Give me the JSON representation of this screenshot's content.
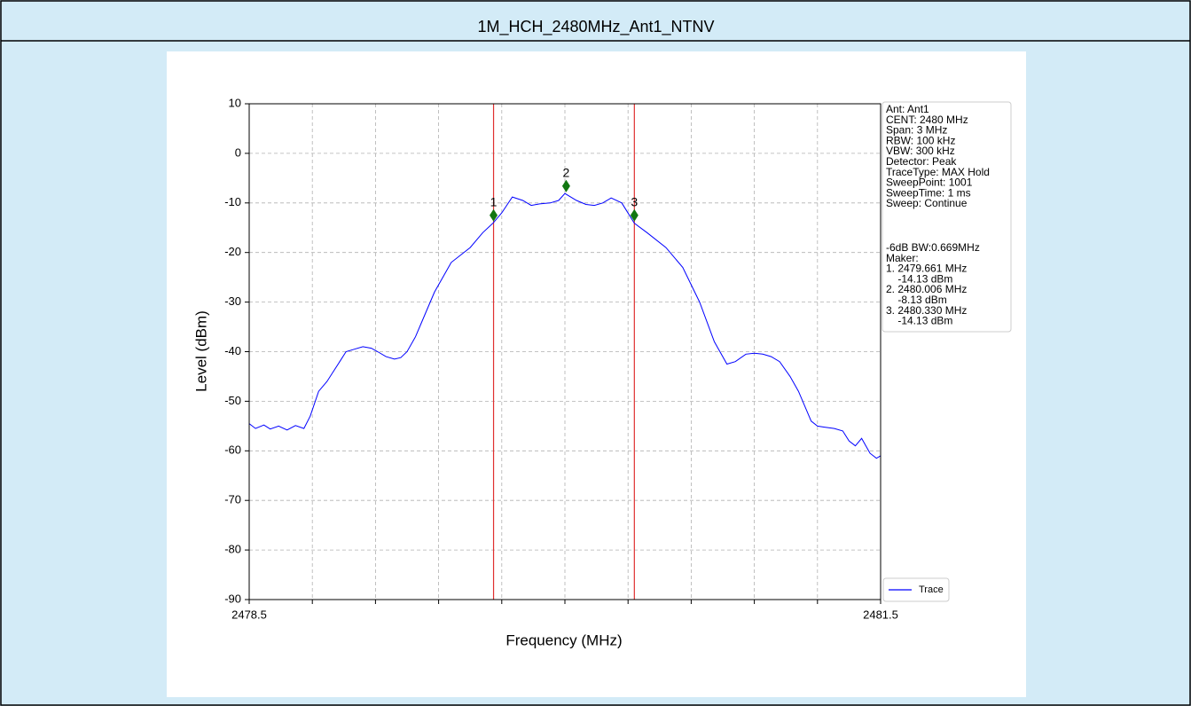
{
  "chart_data": {
    "type": "line",
    "title": "1M_HCH_2480MHz_Ant1_NTNV",
    "xlabel": "Frequency (MHz)",
    "ylabel": "Level (dBm)",
    "xlim": [
      2478.5,
      2481.5
    ],
    "ylim": [
      -90,
      10
    ],
    "xticks": [
      2478.5,
      2481.5
    ],
    "xminor_ticks": [
      2478.8,
      2479.1,
      2479.4,
      2479.7,
      2480.0,
      2480.3,
      2480.6,
      2480.9,
      2481.2
    ],
    "yticks": [
      10,
      0,
      -10,
      -20,
      -30,
      -40,
      -50,
      -60,
      -70,
      -80,
      -90
    ],
    "grid": true,
    "x": [
      2478.5,
      2478.53,
      2478.57,
      2478.6,
      2478.64,
      2478.68,
      2478.72,
      2478.76,
      2478.79,
      2478.83,
      2478.87,
      2478.9,
      2478.93,
      2478.96,
      2479.0,
      2479.04,
      2479.08,
      2479.11,
      2479.15,
      2479.19,
      2479.22,
      2479.25,
      2479.29,
      2479.32,
      2479.38,
      2479.46,
      2479.55,
      2479.61,
      2479.66,
      2479.7,
      2479.75,
      2479.8,
      2479.84,
      2479.88,
      2479.93,
      2479.97,
      2480.0,
      2480.055,
      2480.1,
      2480.14,
      2480.18,
      2480.22,
      2480.27,
      2480.33,
      2480.39,
      2480.48,
      2480.56,
      2480.64,
      2480.71,
      2480.77,
      2480.81,
      2480.86,
      2480.9,
      2480.94,
      2480.98,
      2481.02,
      2481.07,
      2481.11,
      2481.17,
      2481.2,
      2481.23,
      2481.28,
      2481.32,
      2481.35,
      2481.38,
      2481.41,
      2481.45,
      2481.48,
      2481.5
    ],
    "series": [
      {
        "name": "Trace",
        "color": "#0000ff",
        "values": [
          -54.5,
          -55.5,
          -54.8,
          -55.6,
          -55,
          -55.8,
          -54.9,
          -55.5,
          -53,
          -48,
          -46,
          -44,
          -42,
          -40,
          -39.5,
          -39,
          -39.3,
          -40,
          -41,
          -41.5,
          -41.2,
          -40,
          -37,
          -34,
          -28,
          -22,
          -19,
          -16,
          -14,
          -12,
          -8.8,
          -9.5,
          -10.5,
          -10.2,
          -10,
          -9.5,
          -8.1,
          -9.5,
          -10.3,
          -10.5,
          -10,
          -9,
          -10,
          -14.1,
          -16,
          -19,
          -23,
          -30,
          -38,
          -42.5,
          -42,
          -40.5,
          -40.3,
          -40.5,
          -41,
          -42,
          -45,
          -48,
          -54,
          -55,
          -55.2,
          -55.5,
          -56,
          -58,
          -59,
          -57.5,
          -60.5,
          -61.5,
          -61
        ]
      }
    ],
    "vlines": [
      2479.661,
      2480.33
    ],
    "vline_color": "#e03030",
    "markers": [
      {
        "label": "1",
        "x": 2479.661,
        "y": -12.5
      },
      {
        "label": "2",
        "x": 2480.006,
        "y": -6.6
      },
      {
        "label": "3",
        "x": 2480.33,
        "y": -12.5
      }
    ],
    "marker_color": "#117711",
    "info_lines": [
      "Ant: Ant1",
      "CENT: 2480 MHz",
      "Span: 3 MHz",
      "RBW: 100 kHz",
      "VBW: 300 kHz",
      "Detector: Peak",
      "TraceType: MAX Hold",
      "SweepPoint: 1001",
      "SweepTime: 1 ms",
      "Sweep: Continue"
    ],
    "result_lines": [
      "-6dB BW:0.669MHz",
      "Maker:",
      "1. 2479.661 MHz",
      "    -14.13 dBm",
      "2. 2480.006 MHz",
      "    -8.13 dBm",
      "3. 2480.330 MHz",
      "    -14.13 dBm"
    ]
  }
}
